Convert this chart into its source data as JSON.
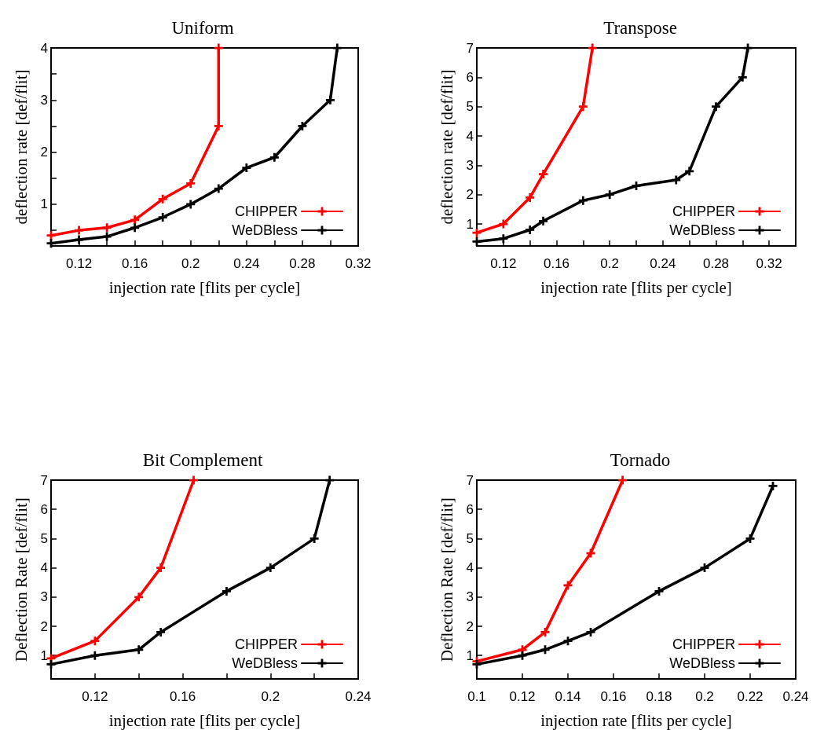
{
  "chart_data": [
    {
      "type": "line",
      "title": "Uniform",
      "xlabel": "injection rate [flits per cycle]",
      "ylabel": "deflection rate [def/flit]",
      "xlim": [
        0.1,
        0.32
      ],
      "ylim": [
        0.2,
        4
      ],
      "xticks": [
        {
          "value": 0.1,
          "label": null
        },
        0.12,
        {
          "value": 0.14,
          "label": null
        },
        0.16,
        {
          "value": 0.18,
          "label": null
        },
        0.2,
        {
          "value": 0.22,
          "label": null
        },
        0.24,
        {
          "value": 0.26,
          "label": null
        },
        0.28,
        {
          "value": 0.3,
          "label": null
        },
        0.32
      ],
      "yticks": [
        {
          "value": 0.5,
          "label": null
        },
        1,
        {
          "value": 1.5,
          "label": null
        },
        2,
        {
          "value": 2.5,
          "label": null
        },
        3,
        {
          "value": 3.5,
          "label": null
        },
        4
      ],
      "legend": "bottom right",
      "marker": "cross",
      "line_style": "solid",
      "grid": false,
      "series": [
        {
          "name": "CHIPPER",
          "color": "#ff0000",
          "x": [
            0.1,
            0.12,
            0.14,
            0.16,
            0.18,
            0.2,
            0.22,
            0.22
          ],
          "values": [
            0.4,
            0.5,
            0.55,
            0.7,
            1.1,
            1.4,
            2.5,
            4
          ]
        },
        {
          "name": "WeDBless",
          "color": "#000000",
          "x": [
            0.1,
            0.12,
            0.14,
            0.16,
            0.18,
            0.2,
            0.22,
            0.24,
            0.26,
            0.28,
            0.3,
            0.305
          ],
          "values": [
            0.25,
            0.32,
            0.38,
            0.55,
            0.75,
            1.0,
            1.3,
            1.7,
            1.9,
            2.5,
            3.0,
            4
          ]
        }
      ]
    },
    {
      "type": "line",
      "title": "Transpose",
      "xlabel": "injection rate [flits per cycle]",
      "ylabel": "deflection rate [def/flit]",
      "xlim": [
        0.1,
        0.34
      ],
      "ylim": [
        0.25,
        7
      ],
      "xticks": [
        {
          "value": 0.1,
          "label": null
        },
        0.12,
        {
          "value": 0.14,
          "label": null
        },
        0.16,
        {
          "value": 0.18,
          "label": null
        },
        0.2,
        {
          "value": 0.22,
          "label": null
        },
        0.24,
        {
          "value": 0.26,
          "label": null
        },
        0.28,
        {
          "value": 0.3,
          "label": null
        },
        0.32,
        {
          "value": 0.34,
          "label": null
        }
      ],
      "yticks": [
        1,
        2,
        3,
        4,
        5,
        6,
        7
      ],
      "legend": "bottom right",
      "marker": "cross",
      "line_style": "solid",
      "grid": false,
      "series": [
        {
          "name": "CHIPPER",
          "color": "#ff0000",
          "x": [
            0.1,
            0.12,
            0.14,
            0.15,
            0.18,
            0.187
          ],
          "values": [
            0.7,
            1.0,
            1.9,
            2.7,
            5.0,
            7
          ]
        },
        {
          "name": "WeDBless",
          "color": "#000000",
          "x": [
            0.1,
            0.12,
            0.14,
            0.15,
            0.18,
            0.2,
            0.22,
            0.25,
            0.26,
            0.28,
            0.3,
            0.304
          ],
          "values": [
            0.4,
            0.5,
            0.8,
            1.1,
            1.8,
            2.0,
            2.3,
            2.5,
            2.8,
            5.0,
            6.0,
            7
          ]
        }
      ]
    },
    {
      "type": "line",
      "title": "Bit Complement",
      "xlabel": "injection rate [flits per cycle]",
      "ylabel": "Deflection Rate [def/flit]",
      "xlim": [
        0.1,
        0.24
      ],
      "ylim": [
        0.2,
        7
      ],
      "xticks": [
        {
          "value": 0.1,
          "label": null
        },
        0.12,
        {
          "value": 0.14,
          "label": null
        },
        0.16,
        {
          "value": 0.18,
          "label": null
        },
        0.2,
        {
          "value": 0.22,
          "label": null
        },
        0.24
      ],
      "yticks": [
        1,
        2,
        3,
        4,
        5,
        6,
        7
      ],
      "legend": "bottom right",
      "marker": "cross",
      "line_style": "solid",
      "grid": false,
      "series": [
        {
          "name": "CHIPPER",
          "color": "#ff0000",
          "x": [
            0.1,
            0.12,
            0.14,
            0.15,
            0.165
          ],
          "values": [
            0.9,
            1.5,
            3.0,
            4.0,
            7
          ]
        },
        {
          "name": "WeDBless",
          "color": "#000000",
          "x": [
            0.1,
            0.12,
            0.14,
            0.15,
            0.18,
            0.2,
            0.22,
            0.227
          ],
          "values": [
            0.7,
            1.0,
            1.2,
            1.8,
            3.2,
            4.0,
            5.0,
            7
          ]
        }
      ]
    },
    {
      "type": "line",
      "title": "Tornado",
      "xlabel": "injection rate [flits per cycle]",
      "ylabel": "Deflection Rate [def/flit]",
      "xlim": [
        0.1,
        0.24
      ],
      "ylim": [
        0.2,
        7
      ],
      "xticks": [
        0.1,
        0.12,
        0.14,
        0.16,
        0.18,
        0.2,
        0.22,
        0.24
      ],
      "yticks": [
        1,
        2,
        3,
        4,
        5,
        6,
        7
      ],
      "legend": "bottom right",
      "marker": "cross",
      "line_style": "solid",
      "grid": false,
      "series": [
        {
          "name": "CHIPPER",
          "color": "#ff0000",
          "x": [
            0.1,
            0.12,
            0.13,
            0.14,
            0.15,
            0.164
          ],
          "values": [
            0.8,
            1.2,
            1.8,
            3.4,
            4.5,
            7
          ]
        },
        {
          "name": "WeDBless",
          "color": "#000000",
          "x": [
            0.1,
            0.12,
            0.13,
            0.14,
            0.15,
            0.18,
            0.2,
            0.22,
            0.23
          ],
          "values": [
            0.7,
            1.0,
            1.2,
            1.5,
            1.8,
            3.2,
            4.0,
            5.0,
            6.8
          ]
        }
      ]
    }
  ]
}
